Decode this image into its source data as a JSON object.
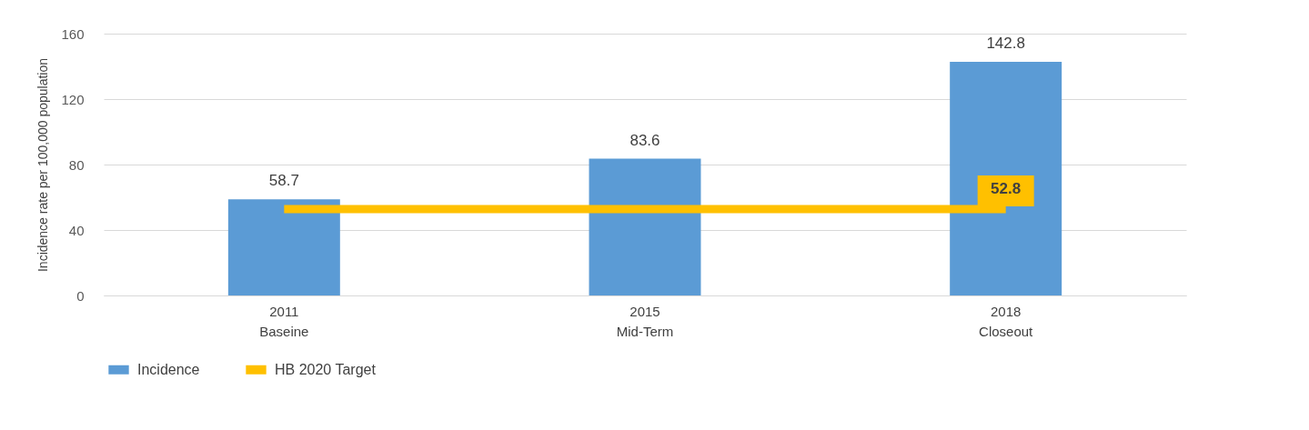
{
  "chart_data": {
    "type": "bar",
    "ylabel": "Incidence rate per 100,000 population",
    "categories": [
      "2011\nBaseine",
      "2015\nMid-Term",
      "2018\nCloseout"
    ],
    "series": [
      {
        "name": "Incidence",
        "color": "#5b9bd5",
        "values": [
          58.7,
          83.6,
          142.8
        ],
        "value_labels": [
          "58.7",
          "83.6",
          "142.8"
        ]
      },
      {
        "name": "HB 2020 Target",
        "type": "line",
        "color": "#ffc000",
        "values": [
          52.8,
          52.8,
          52.8
        ],
        "value_labels": [
          null,
          null,
          "52.8"
        ]
      }
    ],
    "ylim": [
      0,
      160
    ],
    "yticks": [
      0,
      40,
      80,
      120,
      160
    ],
    "grid": "y",
    "legend": "bottom"
  }
}
